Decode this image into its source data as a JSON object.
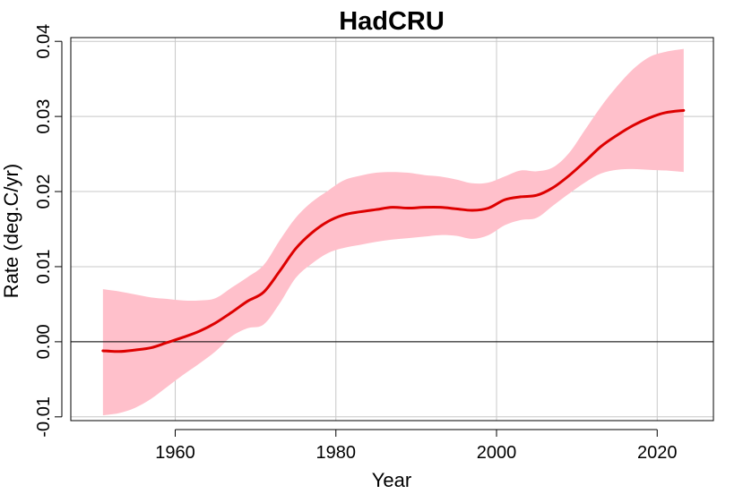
{
  "chart_data": {
    "type": "line",
    "title": "HadCRU",
    "xlabel": "Year",
    "ylabel": "Rate (deg.C/yr)",
    "xlim": [
      1947,
      2027
    ],
    "ylim": [
      -0.0105,
      0.0405
    ],
    "xticks": [
      1960,
      1980,
      2000,
      2020
    ],
    "xtick_labels": [
      "1960",
      "1980",
      "2000",
      "2020"
    ],
    "yticks": [
      -0.01,
      0.0,
      0.01,
      0.02,
      0.03,
      0.04
    ],
    "ytick_labels": [
      "-0.01",
      "0.00",
      "0.01",
      "0.02",
      "0.03",
      "0.04"
    ],
    "grid": true,
    "reference_line_y": 0.0,
    "colors": {
      "line": "#dd0000",
      "band": "#ffc0cb",
      "grid": "#c8c8c8",
      "zero_line": "#000000"
    },
    "series": [
      {
        "x": [
          1951,
          1953,
          1955,
          1957,
          1959,
          1961,
          1963,
          1965,
          1967,
          1969,
          1971,
          1973,
          1975,
          1977,
          1979,
          1981,
          1983,
          1985,
          1987,
          1989,
          1991,
          1993,
          1995,
          1997,
          1999,
          2001,
          2003,
          2005,
          2007,
          2009,
          2011,
          2013,
          2015,
          2017,
          2019,
          2021,
          2023.3
        ],
        "y": [
          -0.0012,
          -0.0013,
          -0.0011,
          -0.0008,
          -0.0001,
          0.0006,
          0.0014,
          0.0025,
          0.0039,
          0.0054,
          0.0066,
          0.0094,
          0.0124,
          0.0145,
          0.016,
          0.0169,
          0.0173,
          0.0176,
          0.0179,
          0.0178,
          0.0179,
          0.0179,
          0.0177,
          0.0175,
          0.0178,
          0.0189,
          0.0193,
          0.0195,
          0.0205,
          0.0221,
          0.024,
          0.026,
          0.0275,
          0.0288,
          0.0298,
          0.0305,
          0.0308
        ],
        "upper": [
          0.007,
          0.0067,
          0.0063,
          0.0059,
          0.0057,
          0.0055,
          0.0055,
          0.0058,
          0.0072,
          0.0086,
          0.0102,
          0.0135,
          0.0165,
          0.0186,
          0.0201,
          0.0215,
          0.0221,
          0.0225,
          0.0226,
          0.0225,
          0.0222,
          0.022,
          0.0216,
          0.0211,
          0.0212,
          0.022,
          0.0228,
          0.0227,
          0.0232,
          0.0251,
          0.0282,
          0.0313,
          0.034,
          0.0363,
          0.0379,
          0.0386,
          0.039
        ],
        "lower": [
          -0.0098,
          -0.0095,
          -0.0088,
          -0.0076,
          -0.006,
          -0.0044,
          -0.0029,
          -0.0013,
          0.0007,
          0.0018,
          0.0023,
          0.0051,
          0.0085,
          0.0104,
          0.0118,
          0.0125,
          0.0129,
          0.0133,
          0.0136,
          0.0138,
          0.014,
          0.0142,
          0.0141,
          0.0137,
          0.0142,
          0.0155,
          0.0162,
          0.0165,
          0.0181,
          0.0197,
          0.0212,
          0.0224,
          0.0229,
          0.023,
          0.0229,
          0.0228,
          0.0226
        ]
      }
    ]
  }
}
